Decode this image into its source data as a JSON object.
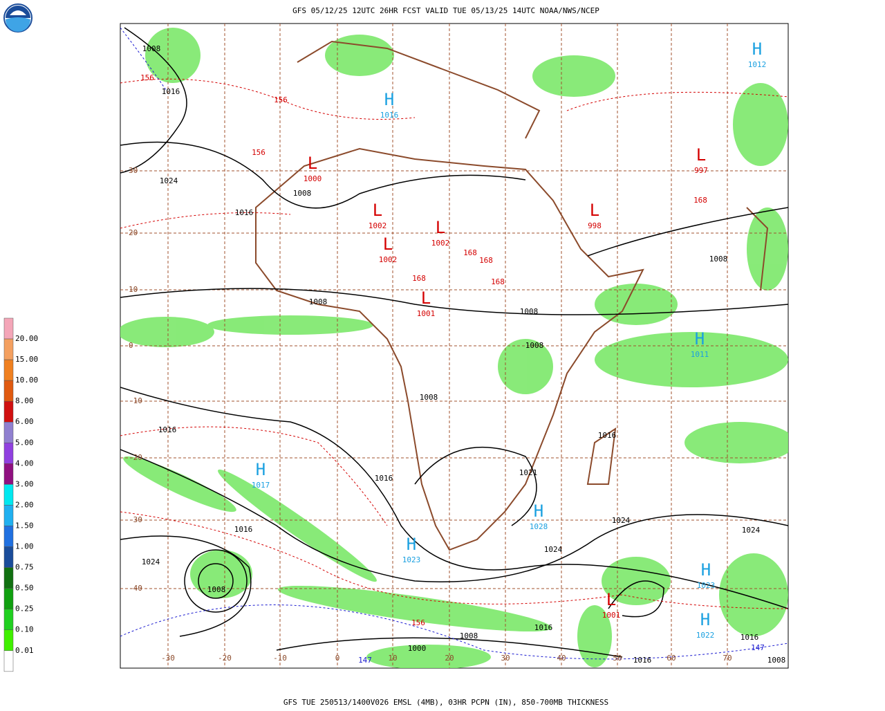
{
  "header": {
    "title": "GFS 05/12/25 12UTC 26HR FCST VALID TUE 05/13/25 14UTC NOAA/NWS/NCEP"
  },
  "footer": {
    "caption": "GFS TUE 250513/1400V026 EMSL (4MB), 03HR PCPN (IN), 850-700MB THICKNESS"
  },
  "legend": {
    "labels": [
      "20.00",
      "15.00",
      "10.00",
      "8.00",
      "6.00",
      "5.00",
      "4.00",
      "3.00",
      "2.00",
      "1.50",
      "1.00",
      "0.75",
      "0.50",
      "0.25",
      "0.10",
      "0.01"
    ]
  },
  "grid": {
    "lat_labels": [
      "30",
      "20",
      "10",
      "0",
      "-10",
      "-20",
      "-30",
      "-40"
    ],
    "lon_labels": [
      "-30",
      "-20",
      "-10",
      "0",
      "10",
      "20",
      "30",
      "40",
      "50",
      "60",
      "70"
    ]
  },
  "centers": [
    {
      "symbol": "H",
      "value": "1028"
    },
    {
      "symbol": "H",
      "value": "1023"
    },
    {
      "symbol": "H",
      "value": "1017"
    },
    {
      "symbol": "H",
      "value": "1023"
    },
    {
      "symbol": "H",
      "value": "1022"
    },
    {
      "symbol": "H",
      "value": "1011"
    },
    {
      "symbol": "H",
      "value": "1012"
    },
    {
      "symbol": "H",
      "value": "1016"
    },
    {
      "symbol": "L",
      "value": "1002"
    },
    {
      "symbol": "L",
      "value": "1002"
    },
    {
      "symbol": "L",
      "value": "1002"
    },
    {
      "symbol": "L",
      "value": "1000"
    },
    {
      "symbol": "L",
      "value": "997"
    },
    {
      "symbol": "L",
      "value": "998"
    },
    {
      "symbol": "L",
      "value": "1001"
    },
    {
      "symbol": "L",
      "value": "1001"
    }
  ],
  "isobar_labels": [
    "1016",
    "1024",
    "1024",
    "1016",
    "1008",
    "1016",
    "1024",
    "1008",
    "1016",
    "1024",
    "1016",
    "1008",
    "1000",
    "1024",
    "1008",
    "1016",
    "1016",
    "1008",
    "1008",
    "1008",
    "1008",
    "1021",
    "1008",
    "1016",
    "1016",
    "1008"
  ],
  "thickness_labels": [
    "156",
    "156",
    "156",
    "156",
    "168",
    "168",
    "168",
    "168",
    "168",
    "147",
    "147"
  ]
}
